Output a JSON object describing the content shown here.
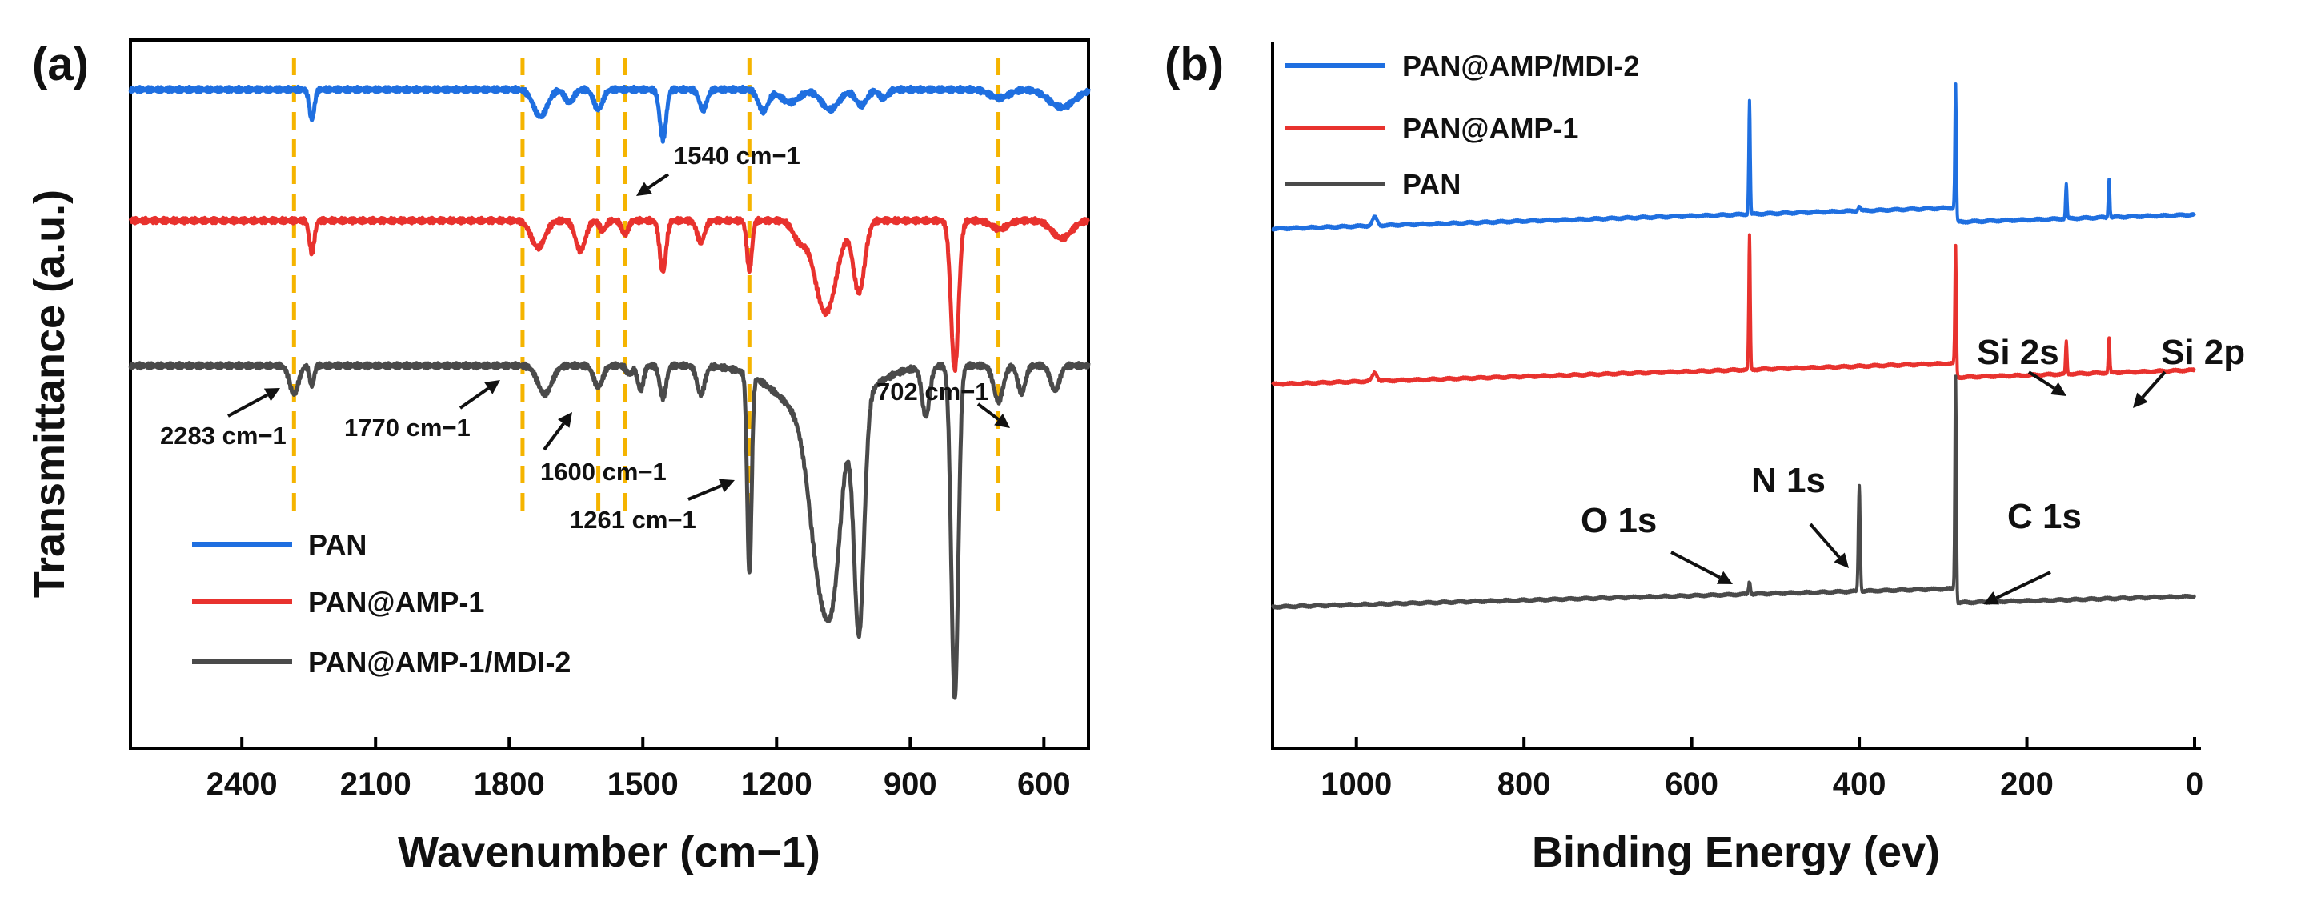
{
  "chart_data": [
    {
      "type": "line",
      "panel_label": "(a)",
      "xlabel": "Wavenumber (cm−1)",
      "ylabel": "Transmittance (a.u.)",
      "xlim": [
        2650,
        500
      ],
      "x_reversed": true,
      "x_ticks": [
        2400,
        2100,
        1800,
        1500,
        1200,
        900,
        600
      ],
      "x_tick_labels": [
        "2400",
        "2100",
        "1800",
        "1500",
        "1200",
        "900",
        "600"
      ],
      "y_ticks_shown": false,
      "ylim": [
        0,
        1
      ],
      "guide_lines": [
        2283,
        1770,
        1600,
        1540,
        1261,
        702
      ],
      "series": [
        {
          "name": "PAN",
          "color": "#1f6fe0",
          "baseline": 0.93,
          "noise": 0.004,
          "peaks": [
            [
              2243,
              0.042,
              8
            ],
            [
              1730,
              0.038,
              22
            ],
            [
              1665,
              0.018,
              14
            ],
            [
              1600,
              0.028,
              14
            ],
            [
              1455,
              0.07,
              10
            ],
            [
              1365,
              0.028,
              12
            ],
            [
              1230,
              0.03,
              16
            ],
            [
              1080,
              0.028,
              28
            ],
            [
              1010,
              0.022,
              18
            ],
            [
              960,
              0.012,
              14
            ],
            [
              700,
              0.012,
              30
            ]
          ],
          "shoulders": [
            [
              1170,
              0.018,
              30
            ],
            [
              560,
              0.025,
              40
            ]
          ]
        },
        {
          "name": "PAN@AMP-1",
          "color": "#e8322e",
          "baseline": 0.745,
          "noise": 0.004,
          "peaks": [
            [
              2243,
              0.045,
              8
            ],
            [
              1735,
              0.038,
              22
            ],
            [
              1640,
              0.042,
              16
            ],
            [
              1590,
              0.014,
              10
            ],
            [
              1540,
              0.02,
              10
            ],
            [
              1455,
              0.072,
              10
            ],
            [
              1370,
              0.03,
              12
            ],
            [
              1261,
              0.07,
              8
            ],
            [
              1150,
              0.025,
              20
            ],
            [
              1090,
              0.13,
              35
            ],
            [
              1015,
              0.1,
              18
            ],
            [
              800,
              0.21,
              12
            ],
            [
              700,
              0.012,
              25
            ],
            [
              560,
              0.025,
              30
            ]
          ],
          "shoulders": []
        },
        {
          "name": "PAN@AMP-1/MDI-2",
          "color": "#4a4a4a",
          "baseline": 0.54,
          "noise": 0.004,
          "peaks": [
            [
              2283,
              0.04,
              14
            ],
            [
              2243,
              0.028,
              7
            ],
            [
              1720,
              0.04,
              22
            ],
            [
              1600,
              0.03,
              14
            ],
            [
              1530,
              0.012,
              10
            ],
            [
              1505,
              0.035,
              9
            ],
            [
              1455,
              0.045,
              10
            ],
            [
              1370,
              0.04,
              12
            ],
            [
              1261,
              0.28,
              7
            ],
            [
              1100,
              0.22,
              35
            ],
            [
              1070,
              0.14,
              25
            ],
            [
              1015,
              0.33,
              16
            ],
            [
              865,
              0.07,
              12
            ],
            [
              800,
              0.47,
              11
            ],
            [
              702,
              0.05,
              15
            ],
            [
              650,
              0.038,
              12
            ],
            [
              575,
              0.035,
              14
            ]
          ],
          "shoulders": [
            [
              1100,
              0.08,
              120
            ]
          ]
        }
      ],
      "annotations": [
        {
          "text": "2283 cm−1",
          "wn": 2283
        },
        {
          "text": "1770 cm−1",
          "wn": 1770
        },
        {
          "text": "1600 cm−1",
          "wn": 1600
        },
        {
          "text": "1540 cm−1",
          "wn": 1540
        },
        {
          "text": "1261 cm−1",
          "wn": 1261
        },
        {
          "text": "702 cm−1",
          "wn": 702
        }
      ],
      "legend": [
        "PAN",
        "PAN@AMP-1",
        "PAN@AMP-1/MDI-2"
      ],
      "legend_position": "lower-left"
    },
    {
      "type": "line",
      "panel_label": "(b)",
      "xlabel": "Binding Energy (ev)",
      "xlim": [
        1100,
        0
      ],
      "x_reversed": true,
      "x_ticks": [
        1000,
        800,
        600,
        400,
        200,
        0
      ],
      "x_tick_labels": [
        "1000",
        "800",
        "600",
        "400",
        "200",
        "0"
      ],
      "y_ticks_shown": false,
      "ylim": [
        0,
        1
      ],
      "series": [
        {
          "name": "PAN@AMP/MDI-2",
          "color": "#1f6fe0",
          "baseline_start": 0.735,
          "baseline_end": 0.775,
          "noise": 0.002,
          "peaks": [
            [
              978,
              0.012,
              4
            ],
            [
              531,
              0.16,
              1.2
            ],
            [
              400,
              0.006,
              2
            ],
            [
              285,
              0.175,
              1.2
            ],
            [
              153,
              0.048,
              1.2
            ],
            [
              102,
              0.055,
              1.2
            ]
          ]
        },
        {
          "name": "PAN@AMP-1",
          "color": "#e8322e",
          "baseline_start": 0.515,
          "baseline_end": 0.555,
          "noise": 0.002,
          "peaks": [
            [
              978,
              0.012,
              4
            ],
            [
              531,
              0.19,
              1.2
            ],
            [
              285,
              0.165,
              1.2
            ],
            [
              153,
              0.045,
              1.2
            ],
            [
              102,
              0.05,
              1.2
            ]
          ]
        },
        {
          "name": "PAN",
          "color": "#4a4a4a",
          "baseline_start": 0.2,
          "baseline_end": 0.235,
          "noise": 0.002,
          "peaks": [
            [
              531,
              0.018,
              1.5
            ],
            [
              400,
              0.15,
              1.5
            ],
            [
              285,
              0.3,
              1.2
            ]
          ]
        }
      ],
      "peak_labels": [
        {
          "text": "O 1s",
          "be": 531
        },
        {
          "text": "N 1s",
          "be": 400
        },
        {
          "text": "C 1s",
          "be": 285
        },
        {
          "text": "Si 2s",
          "be": 153
        },
        {
          "text": "Si 2p",
          "be": 102
        }
      ],
      "legend": [
        "PAN@AMP/MDI-2",
        "PAN@AMP-1",
        "PAN"
      ],
      "legend_position": "top-left"
    }
  ]
}
